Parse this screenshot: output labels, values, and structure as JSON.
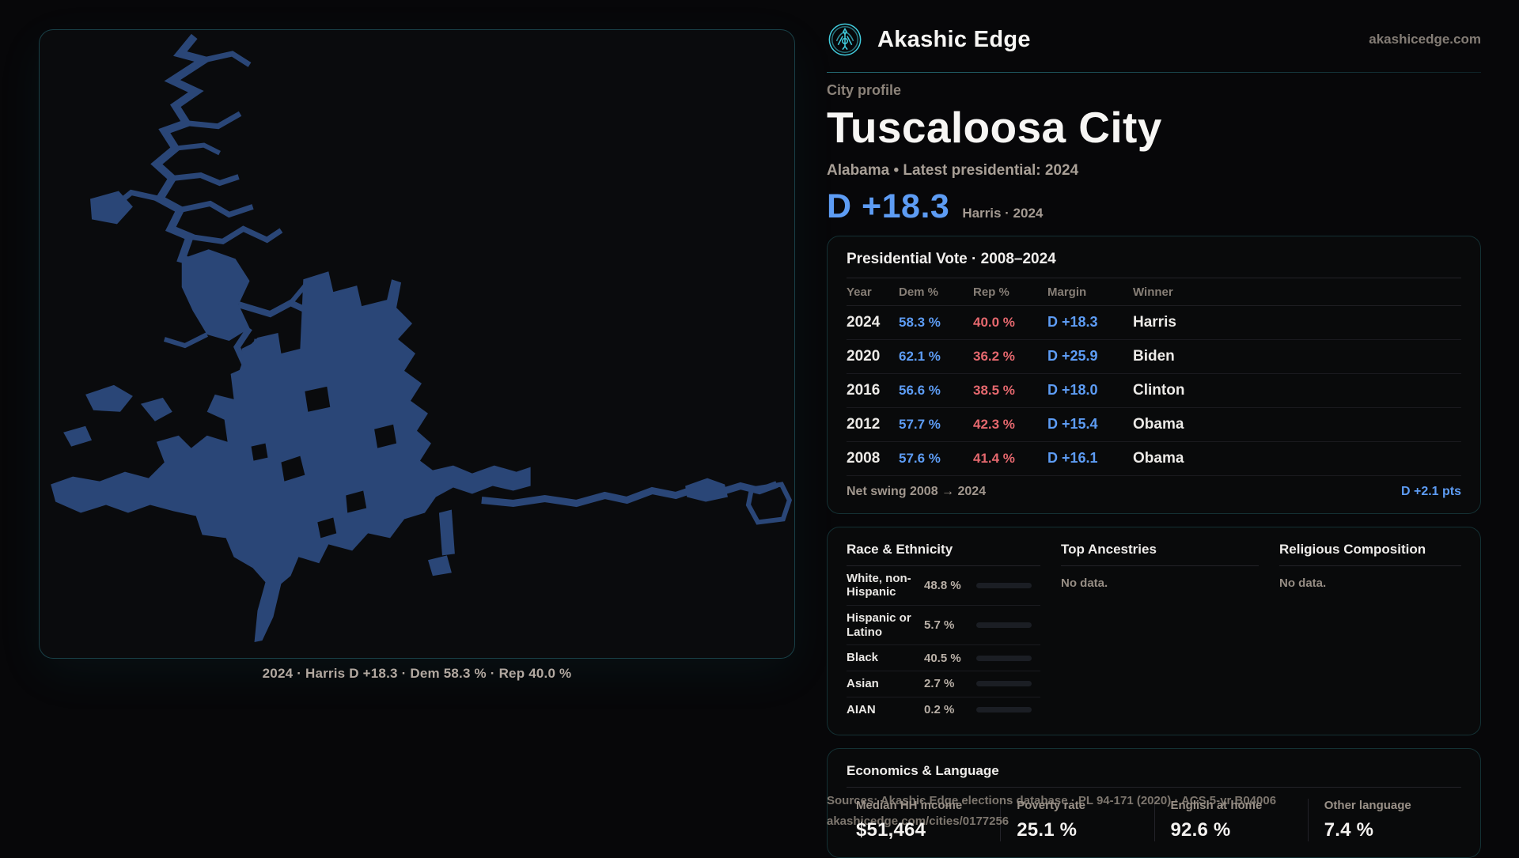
{
  "brand": {
    "name": "Akashic Edge",
    "domain": "akashicedge.com"
  },
  "profile": {
    "kicker": "City profile",
    "title": "Tuscaloosa City",
    "subtitle": "Alabama • Latest presidential: 2024",
    "margin": "D +18.3",
    "margin_note": "Harris · 2024"
  },
  "map": {
    "caption": "2024 · Harris D +18.3 · Dem 58.3 % · Rep 40.0 %"
  },
  "vote_table": {
    "title": "Presidential Vote · 2008–2024",
    "columns": [
      "Year",
      "Dem %",
      "Rep %",
      "Margin",
      "Winner"
    ],
    "rows": [
      {
        "year": "2024",
        "dem": "58.3 %",
        "rep": "40.0 %",
        "margin": "D +18.3",
        "winner": "Harris"
      },
      {
        "year": "2020",
        "dem": "62.1 %",
        "rep": "36.2 %",
        "margin": "D +25.9",
        "winner": "Biden"
      },
      {
        "year": "2016",
        "dem": "56.6 %",
        "rep": "38.5 %",
        "margin": "D +18.0",
        "winner": "Clinton"
      },
      {
        "year": "2012",
        "dem": "57.7 %",
        "rep": "42.3 %",
        "margin": "D +15.4",
        "winner": "Obama"
      },
      {
        "year": "2008",
        "dem": "57.6 %",
        "rep": "41.4 %",
        "margin": "D +16.1",
        "winner": "Obama"
      }
    ],
    "swing_label": "Net swing 2008 → 2024",
    "swing_value": "D +2.1 pts"
  },
  "demographics": {
    "race": {
      "title": "Race & Ethnicity",
      "rows": [
        {
          "label": "White, non-Hispanic",
          "value": "48.8 %",
          "pct": 48.8,
          "color": "#8fa3c0"
        },
        {
          "label": "Hispanic or Latino",
          "value": "5.7 %",
          "pct": 5.7,
          "color": "#e0912f"
        },
        {
          "label": "Black",
          "value": "40.5 %",
          "pct": 40.5,
          "color": "#9b8ce0"
        },
        {
          "label": "Asian",
          "value": "2.7 %",
          "pct": 2.7,
          "color": "#2fc392"
        },
        {
          "label": "AIAN",
          "value": "0.2 %",
          "pct": 0.2,
          "color": "#5a616c"
        }
      ]
    },
    "ancestries": {
      "title": "Top Ancestries",
      "empty": "No data."
    },
    "religion": {
      "title": "Religious Composition",
      "empty": "No data."
    }
  },
  "economics": {
    "title": "Economics & Language",
    "stats": [
      {
        "label": "Median HH income",
        "value": "$51,464"
      },
      {
        "label": "Poverty rate",
        "value": "25.1 %"
      },
      {
        "label": "English at home",
        "value": "92.6 %"
      },
      {
        "label": "Other language",
        "value": "7.4 %"
      }
    ]
  },
  "footer": {
    "sources": "Sources: Akashic Edge elections database · PL 94-171 (2020) · ACS 5-yr B04006",
    "permalink": "akashicedge.com/cities/0177256"
  },
  "theme": {
    "accent": "#41ccdd",
    "blue": "#5d9cf4",
    "red": "#e5686e",
    "map_fill": "#2a4677"
  }
}
